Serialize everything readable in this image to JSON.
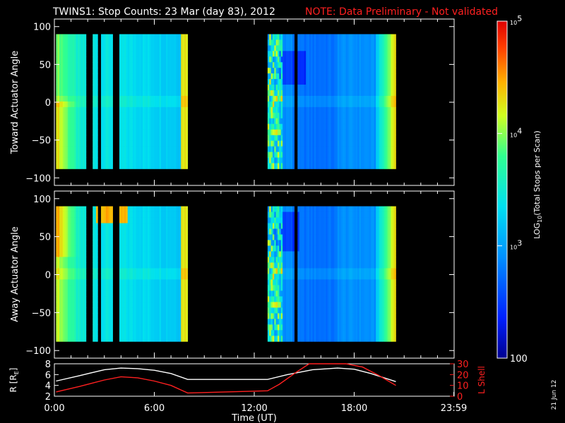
{
  "header": {
    "title": "TWINS1: Stop Counts: 23 Mar (day  83), 2012",
    "note": "NOTE: Data Preliminary - Not validated"
  },
  "panels": {
    "toward_ylabel": "Toward Actuator Angle",
    "away_ylabel": "Away Actuator Angle",
    "orbit_ylabel": "R [R",
    "orbit_ylabel_sub": "E",
    "orbit_ylabel_end": "]",
    "lshell_label": "L Shell",
    "xlabel": "Time (UT)",
    "date_stamp": "21 Jun 12"
  },
  "colorbar": {
    "label_pre": "LOG",
    "label_sub": "10",
    "label_post": "(Total Stops per Scan)",
    "ticks": [
      {
        "text": "10",
        "exp": "5",
        "value": 5
      },
      {
        "text": "10",
        "exp": "4",
        "value": 4
      },
      {
        "text": "10",
        "exp": "3",
        "value": 3
      },
      {
        "text": "100",
        "exp": "",
        "value": 2
      }
    ]
  },
  "colors": {
    "background": "#000000",
    "axes": "#ffffff",
    "note": "#ff2020",
    "r_trace": "#ffffff",
    "lshell_trace": "#ff2020"
  },
  "chart_data": [
    {
      "type": "heatmap",
      "title": "TWINS1: Stop Counts: 23 Mar (day  83), 2012",
      "ylabel": "Toward Actuator Angle",
      "xlim": [
        0,
        24
      ],
      "ylim": [
        -110,
        110
      ],
      "y_ticks": [
        100,
        50,
        0,
        -50,
        -100
      ],
      "data_x_ranges": [
        [
          0.1,
          8.0
        ],
        [
          12.8,
          20.5
        ]
      ],
      "data_y_range": [
        -88,
        90
      ],
      "gaps_x": [
        [
          1.9,
          2.3
        ],
        [
          2.6,
          2.8
        ],
        [
          3.5,
          3.9
        ],
        [
          14.4,
          14.6
        ]
      ],
      "color_scale": "log",
      "zlim": [
        2,
        5
      ]
    },
    {
      "type": "heatmap",
      "ylabel": "Away Actuator Angle",
      "xlim": [
        0,
        24
      ],
      "ylim": [
        -110,
        110
      ],
      "y_ticks": [
        100,
        50,
        0,
        -50,
        -100
      ],
      "data_x_ranges": [
        [
          0.1,
          8.0
        ],
        [
          12.8,
          20.5
        ]
      ],
      "data_y_range": [
        -88,
        90
      ],
      "gaps_x": [
        [
          1.9,
          2.3
        ],
        [
          2.6,
          2.8
        ],
        [
          3.5,
          3.9
        ],
        [
          14.4,
          14.6
        ]
      ],
      "color_scale": "log",
      "zlim": [
        2,
        5
      ]
    },
    {
      "type": "line",
      "xlabel": "Time (UT)",
      "xlim": [
        0,
        24
      ],
      "x_ticks": [
        "0:00",
        "6:00",
        "12:00",
        "18:00",
        "23:59"
      ],
      "x_tick_values": [
        0,
        6,
        12,
        18,
        23.98
      ],
      "ylim": [
        2,
        8
      ],
      "y_ticks": [
        8,
        6,
        4,
        2
      ],
      "y2lim": [
        0,
        30
      ],
      "y2_ticks": [
        30,
        20,
        10,
        0
      ],
      "series": [
        {
          "name": "R [RE]",
          "axis": "left",
          "x": [
            0.1,
            1.5,
            3,
            4,
            5,
            6,
            7,
            8,
            12.8,
            14,
            15.5,
            17,
            18,
            19,
            20.5
          ],
          "y": [
            4.8,
            5.8,
            6.9,
            7.2,
            7.1,
            6.8,
            6.2,
            5.1,
            5.1,
            6.0,
            6.9,
            7.2,
            7.0,
            6.2,
            4.7
          ]
        },
        {
          "name": "L Shell",
          "axis": "right",
          "x": [
            0.1,
            1.5,
            3,
            4,
            5,
            6,
            7,
            8,
            12.8,
            13.5,
            14.5,
            15.3,
            17.5,
            18.5,
            19.5,
            20.5
          ],
          "y": [
            4,
            9,
            15,
            18,
            17,
            14,
            10,
            3,
            5,
            11,
            22,
            31,
            31,
            27,
            19,
            10
          ]
        }
      ]
    }
  ]
}
